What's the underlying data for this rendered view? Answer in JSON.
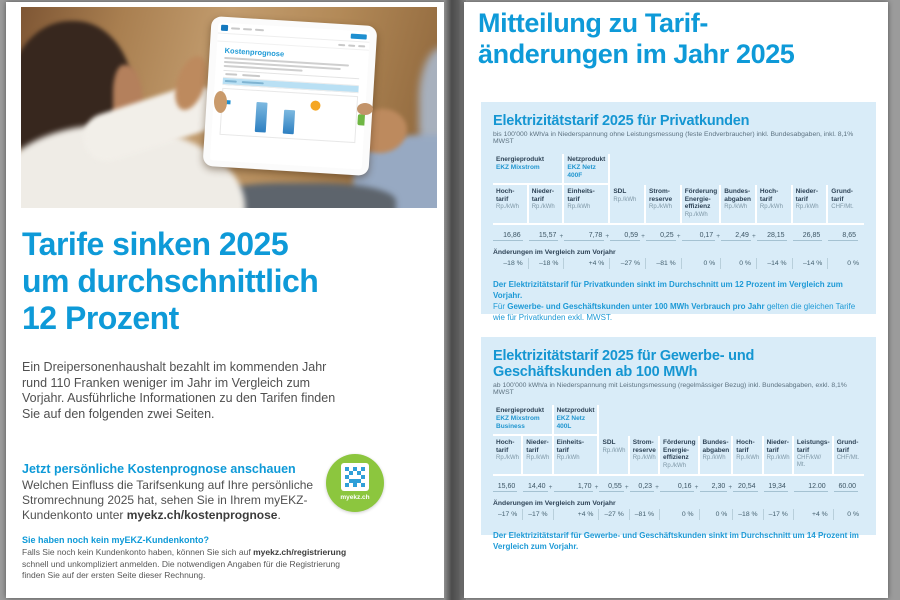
{
  "colors": {
    "ekz_blue": "#0e9ad8",
    "box_bg": "#d9ecf8",
    "qr_green": "#8cc63e"
  },
  "left_page": {
    "tablet": {
      "screen_title": "Kostenprognose"
    },
    "headline": [
      "Tarife sinken 2025",
      "um durchschnittlich",
      "12 Prozent"
    ],
    "intro": "Ein Dreipersonenhaushalt bezahlt im kommenden Jahr rund 110 Franken weniger im Jahr im Vergleich zum Vorjahr. Ausführliche Informationen zu den Tarifen finden Sie auf den folgenden zwei Seiten.",
    "cta": {
      "title": "Jetzt persönliche Kostenprognose anschauen",
      "text1": "Welchen Einfluss die Tarifsenkung auf Ihre persönliche Stromrechnung 2025 hat, sehen Sie in Ihrem myEKZ-Kundenkonto unter ",
      "link": "myekz.ch/kostenprognose",
      "text2": "."
    },
    "qr_label": "myekz.ch",
    "footer": {
      "title": "Sie haben noch kein myEKZ-Kundenkonto?",
      "text1": "Falls Sie noch kein Kundenkonto haben, können Sie sich auf ",
      "link": "myekz.ch/registrierung",
      "text2": " schnell und unkompliziert anmelden. Die notwendigen Angaben für die Registrierung finden Sie auf der ersten Seite dieser Rechnung."
    }
  },
  "right_page": {
    "headline": [
      "Mitteilung zu Tarif-",
      "änderungen im Jahr 2025"
    ],
    "privat": {
      "title": "Elektrizitätstarif 2025 für Privatkunden",
      "subtitle": "bis 100'000 kWh/a in Niederspannung ohne Leistungsmessung (feste Endverbraucher) inkl. Bundesabgaben, inkl. 8,1% MWST",
      "groups": [
        {
          "label": "Energieprodukt",
          "product": "EKZ Mixstrom",
          "span": 2
        },
        {
          "label": "Netzprodukt",
          "product": "EKZ Netz\n400F",
          "span": 1
        }
      ],
      "columns": [
        {
          "label": "Hoch-\ntarif",
          "unit": "Rp./kWh",
          "value": "16,86",
          "plus": "",
          "change": "–18 %"
        },
        {
          "label": "Nieder-\ntarif",
          "unit": "Rp./kWh",
          "value": "15,57",
          "plus": "+",
          "change": "–18 %"
        },
        {
          "label": "Einheits-\ntarif",
          "unit": "Rp./kWh",
          "value": "7,78",
          "plus": "+",
          "change": "+4 %"
        },
        {
          "label": "SDL",
          "unit": "Rp./kWh",
          "value": "0,59",
          "plus": "+",
          "change": "–27 %"
        },
        {
          "label": "Strom-\nreserve",
          "unit": "Rp./kWh",
          "value": "0,25",
          "plus": "+",
          "change": "–81 %"
        },
        {
          "label": "Förderung\nEnergie-\neffizienz",
          "unit": "Rp./kWh",
          "value": "0,17",
          "plus": "+",
          "change": "0 %"
        },
        {
          "label": "Bundes-\nabgaben",
          "unit": "Rp./kWh",
          "value": "2,49",
          "plus": "+",
          "change": "0 %"
        },
        {
          "label": "Hoch-\ntarif",
          "unit": "Rp./kWh",
          "value": "28,15",
          "plus": "",
          "change": "–14 %"
        },
        {
          "label": "Nieder-\ntarif",
          "unit": "Rp./kWh",
          "value": "26,85",
          "plus": "",
          "change": "–14 %"
        },
        {
          "label": "Grund-\ntarif",
          "unit": "CHF/Mt.",
          "value": "8,65",
          "plus": "",
          "change": "0 %"
        }
      ],
      "changes_label": "Änderungen im Vergleich zum Vorjahr",
      "note": [
        {
          "text": "Der Elektrizitätstarif für Privatkunden sinkt im Durchschnitt um 12 Prozent im Vergleich zum Vorjahr.",
          "bold": true
        },
        {
          "text": "\nFür ",
          "bold": false
        },
        {
          "text": "Gewerbe- und Geschäftskunden unter 100 MWh Verbrauch pro Jahr",
          "bold": true
        },
        {
          "text": " gelten die gleichen Tarife wie für Privatkunden exkl. MWST.",
          "bold": false
        }
      ]
    },
    "business": {
      "title": "Elektrizitätstarif 2025 für Gewerbe- und Geschäftskunden ab 100 MWh",
      "subtitle": "ab 100'000 kWh/a in Niederspannung mit Leistungsmessung (regelmässiger Bezug) inkl. Bundesabgaben, exkl. 8,1% MWST",
      "groups": [
        {
          "label": "Energieprodukt",
          "product": "EKZ Mixstrom\nBusiness",
          "span": 2
        },
        {
          "label": "Netzprodukt",
          "product": "EKZ Netz\n400L",
          "span": 1
        }
      ],
      "columns": [
        {
          "label": "Hoch-\ntarif",
          "unit": "Rp./kWh",
          "value": "15,60",
          "plus": "",
          "change": "–17 %"
        },
        {
          "label": "Nieder-\ntarif",
          "unit": "Rp./kWh",
          "value": "14,40",
          "plus": "+",
          "change": "–17 %"
        },
        {
          "label": "Einheits-\ntarif",
          "unit": "Rp./kWh",
          "value": "1,70",
          "plus": "+",
          "change": "+4 %"
        },
        {
          "label": "SDL",
          "unit": "Rp./kWh",
          "value": "0,55",
          "plus": "+",
          "change": "–27 %"
        },
        {
          "label": "Strom-\nreserve",
          "unit": "Rp./kWh",
          "value": "0,23",
          "plus": "+",
          "change": "–81 %"
        },
        {
          "label": "Förderung\nEnergie-\neffizienz",
          "unit": "Rp./kWh",
          "value": "0,16",
          "plus": "+",
          "change": "0 %"
        },
        {
          "label": "Bundes-\nabgaben",
          "unit": "Rp./kWh",
          "value": "2,30",
          "plus": "+",
          "change": "0 %"
        },
        {
          "label": "Hoch-\ntarif",
          "unit": "Rp./kWh",
          "value": "20,54",
          "plus": "",
          "change": "–18 %"
        },
        {
          "label": "Nieder-\ntarif",
          "unit": "Rp./kWh",
          "value": "19,34",
          "plus": "",
          "change": "–17 %"
        },
        {
          "label": "Leistungs-\ntarif",
          "unit": "CHF/kW/\nMt.",
          "value": "12.00",
          "plus": "",
          "change": "+4 %"
        },
        {
          "label": "Grund-\ntarif",
          "unit": "CHF/Mt.",
          "value": "60.00",
          "plus": "",
          "change": "0 %"
        }
      ],
      "changes_label": "Änderungen im Vergleich zum Vorjahr",
      "note": [
        {
          "text": "Der Elektrizitätstarif für Gewerbe- und Geschäftskunden sinkt im Durchschnitt um 14 Prozent im Vergleich zum Vorjahr.",
          "bold": true
        }
      ]
    }
  }
}
